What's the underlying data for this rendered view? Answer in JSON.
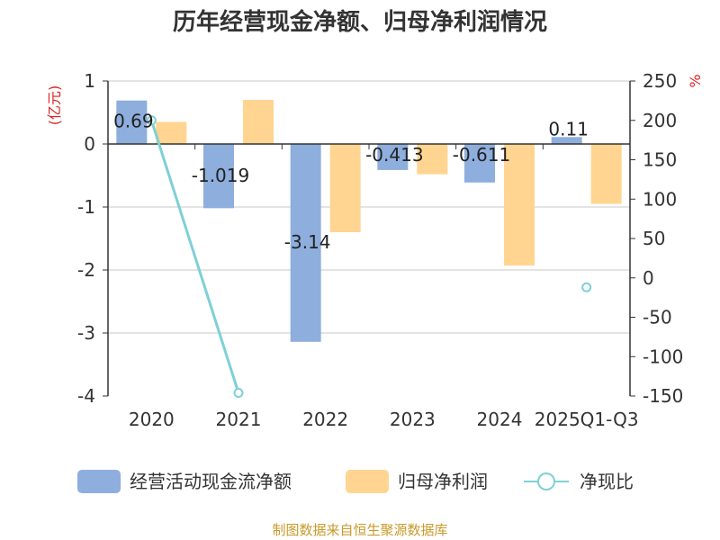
{
  "chart_data": {
    "type": "bar",
    "title": "历年经营现金净额、归母净利润情况",
    "categories": [
      "2020",
      "2021",
      "2022",
      "2023",
      "2024",
      "2025Q1-Q3"
    ],
    "left_axis": {
      "unit": "(亿元)",
      "ylim": [
        -4,
        1
      ],
      "ticks": [
        "1",
        "0",
        "-1",
        "-2",
        "-3",
        "-4"
      ]
    },
    "right_axis": {
      "unit": "%",
      "ylim": [
        -150,
        250
      ],
      "ticks": [
        "250",
        "200",
        "150",
        "100",
        "50",
        "0",
        "-50",
        "-100",
        "-150"
      ]
    },
    "series": [
      {
        "name": "经营活动现金流净额",
        "type": "bar",
        "axis": "left",
        "color": "#8eaedd",
        "values": [
          0.69,
          -1.019,
          -3.14,
          -0.413,
          -0.611,
          0.11
        ],
        "labels": [
          "0.69",
          "-1.019",
          "-3.14",
          "-0.413",
          "-0.611",
          "0.11"
        ]
      },
      {
        "name": "归母净利润",
        "type": "bar",
        "axis": "left",
        "color": "#ffd591",
        "values": [
          0.35,
          0.7,
          -1.4,
          -0.48,
          -1.93,
          -0.95
        ]
      },
      {
        "name": "净现比",
        "type": "line",
        "axis": "right",
        "color": "#7fd0d6",
        "values": [
          200,
          -146,
          null,
          null,
          null,
          -12
        ]
      }
    ],
    "grid": true,
    "legend_position": "bottom"
  },
  "source_note": "制图数据来自恒生聚源数据库"
}
